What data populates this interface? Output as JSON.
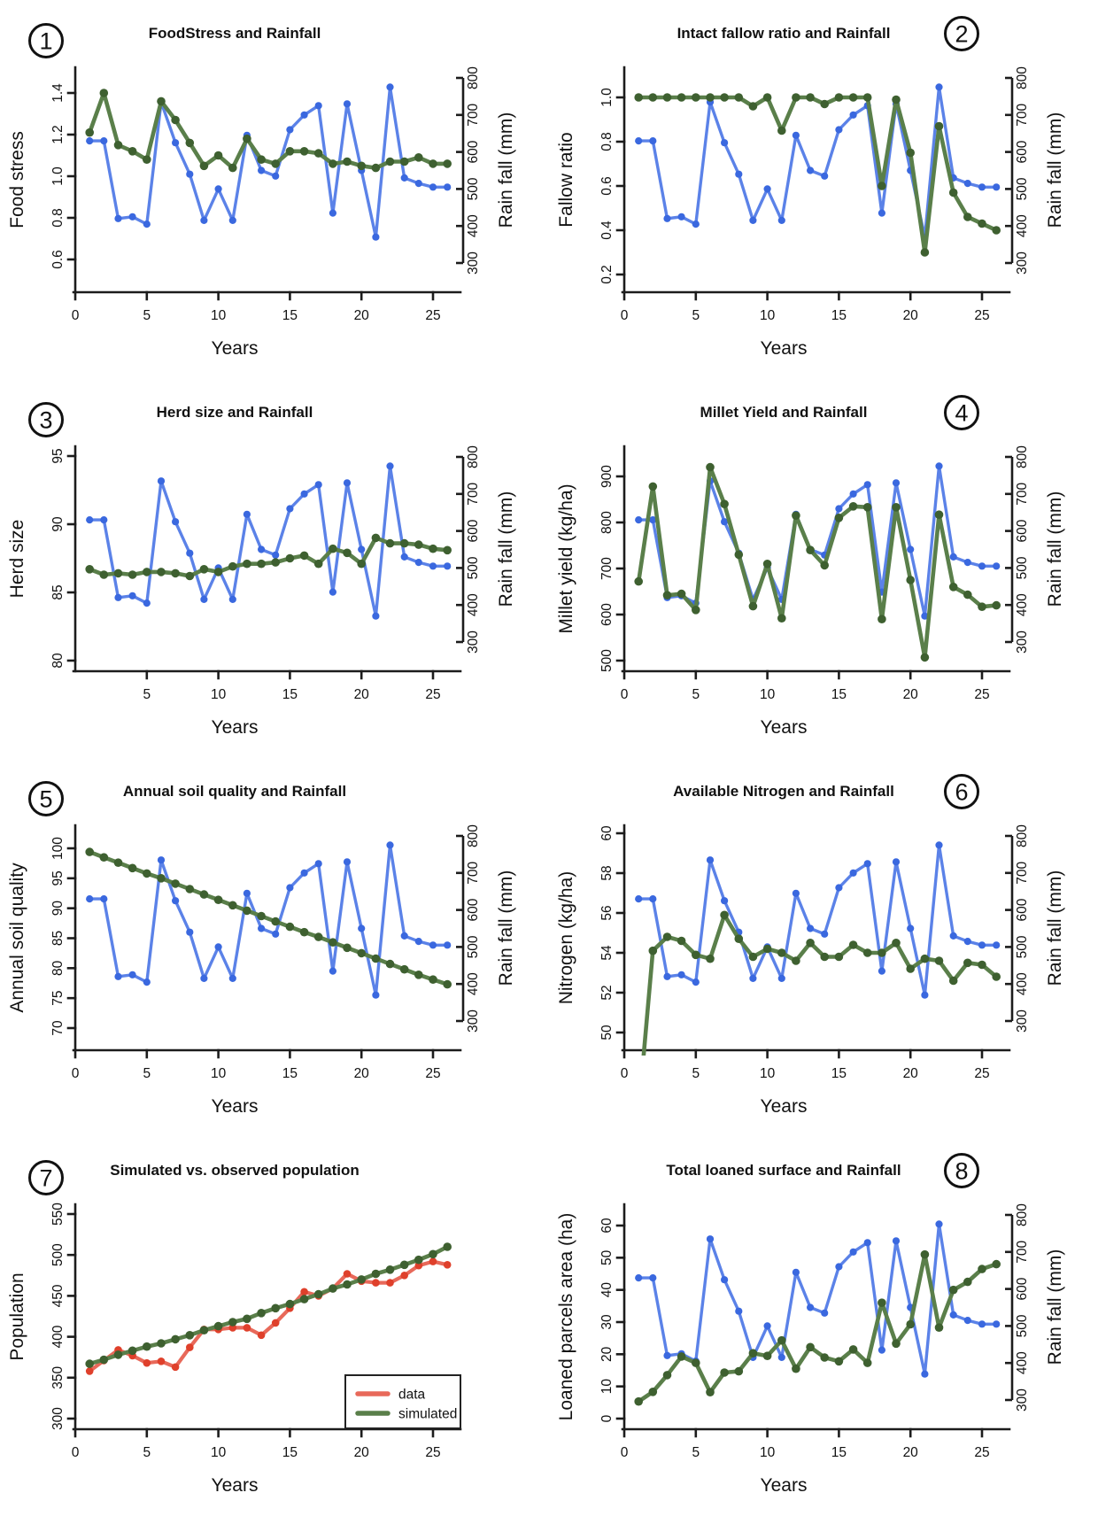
{
  "figure": {
    "background": "#ffffff",
    "columns": 2,
    "rows": 4
  },
  "colors": {
    "series_green": {
      "line": "#5a7f4a",
      "marker": "#3e6030"
    },
    "series_blue": {
      "line": "#5b82e8",
      "marker": "#3a68df"
    },
    "series_red": {
      "line": "#e8695a",
      "marker": "#df402b"
    },
    "rainfall_label": "#7d9bf0",
    "axis": "#1c1c1c",
    "title": "#111111"
  },
  "years": [
    1,
    2,
    3,
    4,
    5,
    6,
    7,
    8,
    9,
    10,
    11,
    12,
    13,
    14,
    15,
    16,
    17,
    18,
    19,
    20,
    21,
    22,
    23,
    24,
    25,
    26
  ],
  "rainfall": {
    "label": "Rain fall (mm)",
    "tick_values": [
      300,
      400,
      500,
      600,
      700,
      800
    ],
    "tick_labels": [
      "300",
      "400",
      "500",
      "600",
      "700",
      "800"
    ],
    "values": [
      630,
      630,
      420,
      425,
      405,
      735,
      625,
      540,
      415,
      500,
      415,
      645,
      550,
      535,
      660,
      700,
      725,
      435,
      730,
      550,
      370,
      775,
      530,
      515,
      505,
      505
    ]
  },
  "chart_data": [
    {
      "number": "1",
      "badge_side": "left",
      "type": "line",
      "title": "FoodStress and Rainfall",
      "xlabel": "Years",
      "ylabel": "Food stress",
      "x_tick_values": [
        0,
        5,
        10,
        15,
        20,
        25
      ],
      "x_tick_labels": [
        "0",
        "5",
        "10",
        "15",
        "20",
        "25"
      ],
      "y_tick_values": [
        0.6,
        0.8,
        1.0,
        1.2,
        1.4
      ],
      "y_tick_labels": [
        "0.6",
        "0.8",
        "1.0",
        "1.2",
        "1.4"
      ],
      "right_axis": true,
      "series": [
        {
          "name": "Rainfall",
          "color": "blue",
          "axis": "right",
          "values_ref": "rainfall"
        },
        {
          "name": "Food stress",
          "color": "green",
          "axis": "left",
          "values": [
            1.21,
            1.4,
            1.15,
            1.12,
            1.08,
            1.36,
            1.27,
            1.16,
            1.05,
            1.1,
            1.04,
            1.18,
            1.08,
            1.06,
            1.12,
            1.12,
            1.11,
            1.06,
            1.07,
            1.05,
            1.04,
            1.07,
            1.07,
            1.09,
            1.06,
            1.06
          ]
        }
      ]
    },
    {
      "number": "2",
      "badge_side": "right",
      "type": "line",
      "title": "Intact fallow ratio and Rainfall",
      "xlabel": "Years",
      "ylabel": "Fallow ratio",
      "x_tick_values": [
        0,
        5,
        10,
        15,
        20,
        25
      ],
      "x_tick_labels": [
        "0",
        "5",
        "10",
        "15",
        "20",
        "25"
      ],
      "y_tick_values": [
        0.2,
        0.4,
        0.6,
        0.8,
        1.0
      ],
      "y_tick_labels": [
        "0.2",
        "0.4",
        "0.6",
        "0.8",
        "1.0"
      ],
      "right_axis": true,
      "series": [
        {
          "name": "Rainfall",
          "color": "blue",
          "axis": "right",
          "values_ref": "rainfall"
        },
        {
          "name": "Fallow ratio",
          "color": "green",
          "axis": "left",
          "values": [
            1.0,
            1.0,
            1.0,
            1.0,
            1.0,
            1.0,
            1.0,
            1.0,
            0.96,
            1.0,
            0.85,
            1.0,
            1.0,
            0.97,
            1.0,
            1.0,
            1.0,
            0.6,
            0.99,
            0.75,
            0.3,
            0.87,
            0.57,
            0.46,
            0.43,
            0.4
          ]
        }
      ]
    },
    {
      "number": "3",
      "badge_side": "left",
      "type": "line",
      "title": "Herd size and Rainfall",
      "xlabel": "Years",
      "ylabel": "Herd size",
      "x_tick_values": [
        5,
        10,
        15,
        20,
        25
      ],
      "x_tick_labels": [
        "5",
        "10",
        "15",
        "20",
        "25"
      ],
      "y_tick_values": [
        80,
        85,
        90,
        95
      ],
      "y_tick_labels": [
        "80",
        "85",
        "90",
        "95"
      ],
      "right_axis": true,
      "series": [
        {
          "name": "Rainfall",
          "color": "blue",
          "axis": "right",
          "values_ref": "rainfall"
        },
        {
          "name": "Herd size",
          "color": "green",
          "axis": "left",
          "values": [
            86.7,
            86.3,
            86.4,
            86.3,
            86.5,
            86.5,
            86.4,
            86.2,
            86.7,
            86.5,
            86.9,
            87.1,
            87.1,
            87.2,
            87.5,
            87.7,
            87.1,
            88.2,
            87.9,
            87.1,
            89.0,
            88.6,
            88.6,
            88.5,
            88.2,
            88.1
          ]
        }
      ]
    },
    {
      "number": "4",
      "badge_side": "right",
      "type": "line",
      "title": "Millet Yield and Rainfall",
      "xlabel": "Years",
      "ylabel": "Millet yield (kg/ha)",
      "x_tick_values": [
        0,
        5,
        10,
        15,
        20,
        25
      ],
      "x_tick_labels": [
        "0",
        "5",
        "10",
        "15",
        "20",
        "25"
      ],
      "y_tick_values": [
        500,
        600,
        700,
        800,
        900
      ],
      "y_tick_labels": [
        "500",
        "600",
        "700",
        "800",
        "900"
      ],
      "right_axis": true,
      "series": [
        {
          "name": "Rainfall",
          "color": "blue",
          "axis": "right",
          "values_ref": "rainfall"
        },
        {
          "name": "Millet yield",
          "color": "green",
          "axis": "left",
          "values": [
            672,
            878,
            642,
            645,
            610,
            920,
            840,
            730,
            618,
            710,
            592,
            815,
            740,
            707,
            810,
            835,
            833,
            590,
            833,
            675,
            507,
            817,
            660,
            643,
            617,
            620
          ]
        }
      ]
    },
    {
      "number": "5",
      "badge_side": "left",
      "type": "line",
      "title": "Annual soil quality and Rainfall",
      "xlabel": "Years",
      "ylabel": "Annual soil quality",
      "x_tick_values": [
        0,
        5,
        10,
        15,
        20,
        25
      ],
      "x_tick_labels": [
        "0",
        "5",
        "10",
        "15",
        "20",
        "25"
      ],
      "y_tick_values": [
        70,
        75,
        80,
        85,
        90,
        95,
        100
      ],
      "y_tick_labels": [
        "70",
        "75",
        "80",
        "85",
        "90",
        "95",
        "100"
      ],
      "right_axis": true,
      "series": [
        {
          "name": "Rainfall",
          "color": "blue",
          "axis": "right",
          "values_ref": "rainfall"
        },
        {
          "name": "Annual soil quality",
          "color": "green",
          "axis": "left",
          "values": [
            99.4,
            98.5,
            97.6,
            96.7,
            95.8,
            95.0,
            94.1,
            93.2,
            92.3,
            91.4,
            90.5,
            89.6,
            88.7,
            87.8,
            86.9,
            86.0,
            85.2,
            84.3,
            83.4,
            82.5,
            81.6,
            80.7,
            79.8,
            78.9,
            78.1,
            77.3
          ]
        }
      ]
    },
    {
      "number": "6",
      "badge_side": "right",
      "type": "line",
      "title": "Available Nitrogen and Rainfall",
      "xlabel": "Years",
      "ylabel": "Nitrogen (kg/ha)",
      "x_tick_values": [
        0,
        5,
        10,
        15,
        20,
        25
      ],
      "x_tick_labels": [
        "0",
        "5",
        "10",
        "15",
        "20",
        "25"
      ],
      "y_tick_values": [
        50,
        52,
        54,
        56,
        58,
        60
      ],
      "y_tick_labels": [
        "50",
        "52",
        "54",
        "56",
        "58",
        "60"
      ],
      "right_axis": true,
      "series": [
        {
          "name": "Rainfall",
          "color": "blue",
          "axis": "right",
          "values_ref": "rainfall"
        },
        {
          "name": "Nitrogen",
          "color": "green",
          "axis": "left",
          "values": [
            46.0,
            54.1,
            54.8,
            54.6,
            53.9,
            53.7,
            55.9,
            54.7,
            53.8,
            54.2,
            54.0,
            53.6,
            54.5,
            53.8,
            53.8,
            54.4,
            54.0,
            54.0,
            54.5,
            53.2,
            53.7,
            53.6,
            52.6,
            53.5,
            53.4,
            52.8
          ]
        }
      ]
    },
    {
      "number": "7",
      "badge_side": "left",
      "type": "line",
      "title": "Simulated vs. observed population",
      "xlabel": "Years",
      "ylabel": "Population",
      "x_tick_values": [
        0,
        5,
        10,
        15,
        20,
        25
      ],
      "x_tick_labels": [
        "0",
        "5",
        "10",
        "15",
        "20",
        "25"
      ],
      "y_tick_values": [
        300,
        350,
        400,
        450,
        500,
        550
      ],
      "y_tick_labels": [
        "300",
        "350",
        "400",
        "450",
        "500",
        "550"
      ],
      "right_axis": false,
      "legend": {
        "entries": [
          {
            "label": "data",
            "color": "red"
          },
          {
            "label": "simulated",
            "color": "green"
          }
        ]
      },
      "series": [
        {
          "name": "data",
          "color": "red",
          "axis": "left",
          "values": [
            358,
            371,
            384,
            377,
            368,
            370,
            363,
            387,
            409,
            409,
            411,
            411,
            402,
            417,
            435,
            455,
            450,
            459,
            477,
            468,
            466,
            466,
            475,
            487,
            492,
            488
          ]
        },
        {
          "name": "simulated",
          "color": "green",
          "axis": "left",
          "values": [
            367,
            372,
            378,
            383,
            388,
            392,
            397,
            402,
            408,
            413,
            418,
            422,
            429,
            435,
            440,
            446,
            452,
            459,
            464,
            470,
            477,
            482,
            488,
            494,
            501,
            510
          ]
        }
      ]
    },
    {
      "number": "8",
      "badge_side": "right",
      "type": "line",
      "title": "Total loaned surface and Rainfall",
      "xlabel": "Years",
      "ylabel": "Loaned parcels area (ha)",
      "x_tick_values": [
        0,
        5,
        10,
        15,
        20,
        25
      ],
      "x_tick_labels": [
        "0",
        "5",
        "10",
        "15",
        "20",
        "25"
      ],
      "y_tick_values": [
        0,
        10,
        20,
        30,
        40,
        50,
        60
      ],
      "y_tick_labels": [
        "0",
        "10",
        "20",
        "30",
        "40",
        "50",
        "60"
      ],
      "right_axis": true,
      "series": [
        {
          "name": "Rainfall",
          "color": "blue",
          "axis": "right",
          "values_ref": "rainfall"
        },
        {
          "name": "Loaned parcels area",
          "color": "green",
          "axis": "left",
          "values": [
            5.3,
            8.3,
            13.5,
            19.3,
            17.3,
            8.2,
            14.3,
            14.7,
            20.3,
            19.5,
            24.3,
            15.5,
            22.2,
            19.0,
            17.8,
            21.5,
            17.3,
            36.0,
            23.3,
            29.3,
            51.0,
            28.3,
            40.0,
            42.5,
            46.5,
            48.0
          ]
        }
      ]
    }
  ]
}
